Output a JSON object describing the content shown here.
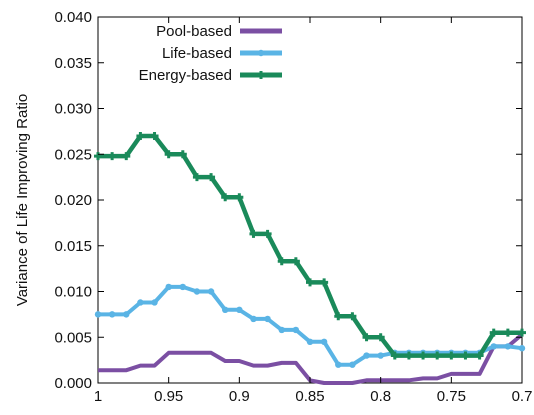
{
  "chart_data": {
    "type": "line",
    "title": "",
    "xlabel": "",
    "ylabel": "Variance of Life Improving Ratio",
    "xlim": [
      1,
      0.7
    ],
    "ylim": [
      0,
      0.04
    ],
    "x_reversed": true,
    "grid": false,
    "legend_position": "top-right",
    "x_ticks": [
      "1",
      "0.95",
      "0.9",
      "0.85",
      "0.8",
      "0.75",
      "0.7"
    ],
    "y_ticks": [
      "0.000",
      "0.005",
      "0.010",
      "0.015",
      "0.020",
      "0.025",
      "0.030",
      "0.035",
      "0.040"
    ],
    "x": [
      1.0,
      0.99,
      0.98,
      0.97,
      0.96,
      0.95,
      0.94,
      0.93,
      0.92,
      0.91,
      0.9,
      0.89,
      0.88,
      0.87,
      0.86,
      0.85,
      0.84,
      0.83,
      0.82,
      0.81,
      0.8,
      0.79,
      0.78,
      0.77,
      0.76,
      0.75,
      0.74,
      0.73,
      0.72,
      0.71,
      0.7
    ],
    "series": [
      {
        "name": "Pool-based",
        "color": "#7b4fa3",
        "marker": "none",
        "values": [
          0.0014,
          0.0014,
          0.0014,
          0.0019,
          0.0019,
          0.0033,
          0.0033,
          0.0033,
          0.0033,
          0.0024,
          0.0024,
          0.0019,
          0.0019,
          0.0022,
          0.0022,
          0.0003,
          0.0,
          0.0,
          0.0,
          0.0003,
          0.0003,
          0.0003,
          0.0003,
          0.0005,
          0.0005,
          0.001,
          0.001,
          0.001,
          0.004,
          0.004,
          0.0053
        ]
      },
      {
        "name": "Life-based",
        "color": "#5ab4e5",
        "marker": "dot",
        "values": [
          0.0075,
          0.0075,
          0.0075,
          0.0088,
          0.0088,
          0.0105,
          0.0105,
          0.01,
          0.01,
          0.008,
          0.008,
          0.007,
          0.007,
          0.0058,
          0.0058,
          0.0045,
          0.0045,
          0.002,
          0.002,
          0.003,
          0.003,
          0.0033,
          0.0033,
          0.0033,
          0.0033,
          0.0033,
          0.0033,
          0.0033,
          0.004,
          0.004,
          0.0038
        ]
      },
      {
        "name": "Energy-based",
        "color": "#1a8a5a",
        "marker": "plus",
        "values": [
          0.0248,
          0.0248,
          0.0248,
          0.027,
          0.027,
          0.025,
          0.025,
          0.0225,
          0.0225,
          0.0203,
          0.0203,
          0.0163,
          0.0163,
          0.0133,
          0.0133,
          0.011,
          0.011,
          0.0073,
          0.0073,
          0.005,
          0.005,
          0.003,
          0.003,
          0.003,
          0.003,
          0.003,
          0.003,
          0.003,
          0.0055,
          0.0055,
          0.0055
        ]
      }
    ]
  }
}
